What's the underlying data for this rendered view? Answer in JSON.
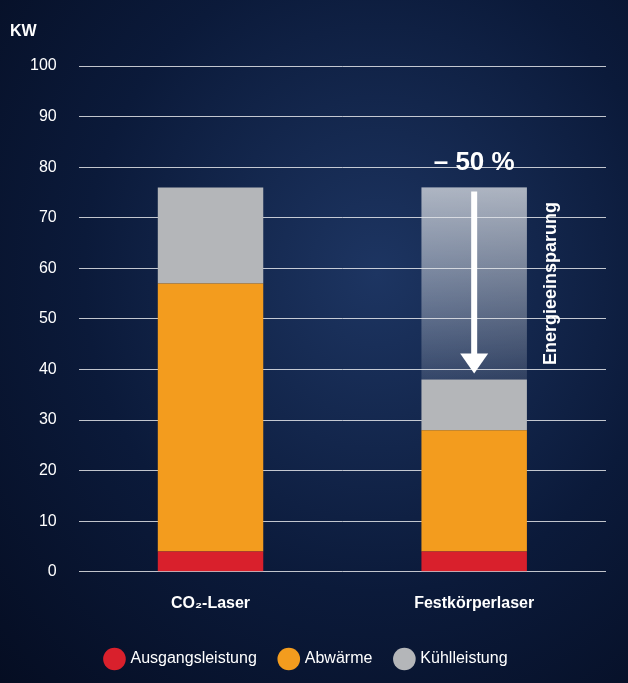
{
  "chart_data": {
    "type": "bar",
    "y_label": "KW",
    "categories": [
      "CO₂-Laser",
      "Festkörperlaser"
    ],
    "series": [
      {
        "name": "Ausgangsleistung",
        "color": "#d9202c",
        "values": [
          4,
          4
        ]
      },
      {
        "name": "Abwärme",
        "color": "#f39c1e",
        "values": [
          53,
          24
        ]
      },
      {
        "name": "Kühlleistung",
        "color": "#b4b6b9",
        "values": [
          19,
          10
        ]
      }
    ],
    "stacked": true,
    "ylim": [
      0,
      100
    ],
    "yticks": [
      0,
      10,
      20,
      30,
      40,
      50,
      60,
      70,
      80,
      90,
      100
    ],
    "grid": true,
    "legend": "bottom",
    "annotations": [
      "– 50 %",
      "Energieeinsparung"
    ]
  }
}
